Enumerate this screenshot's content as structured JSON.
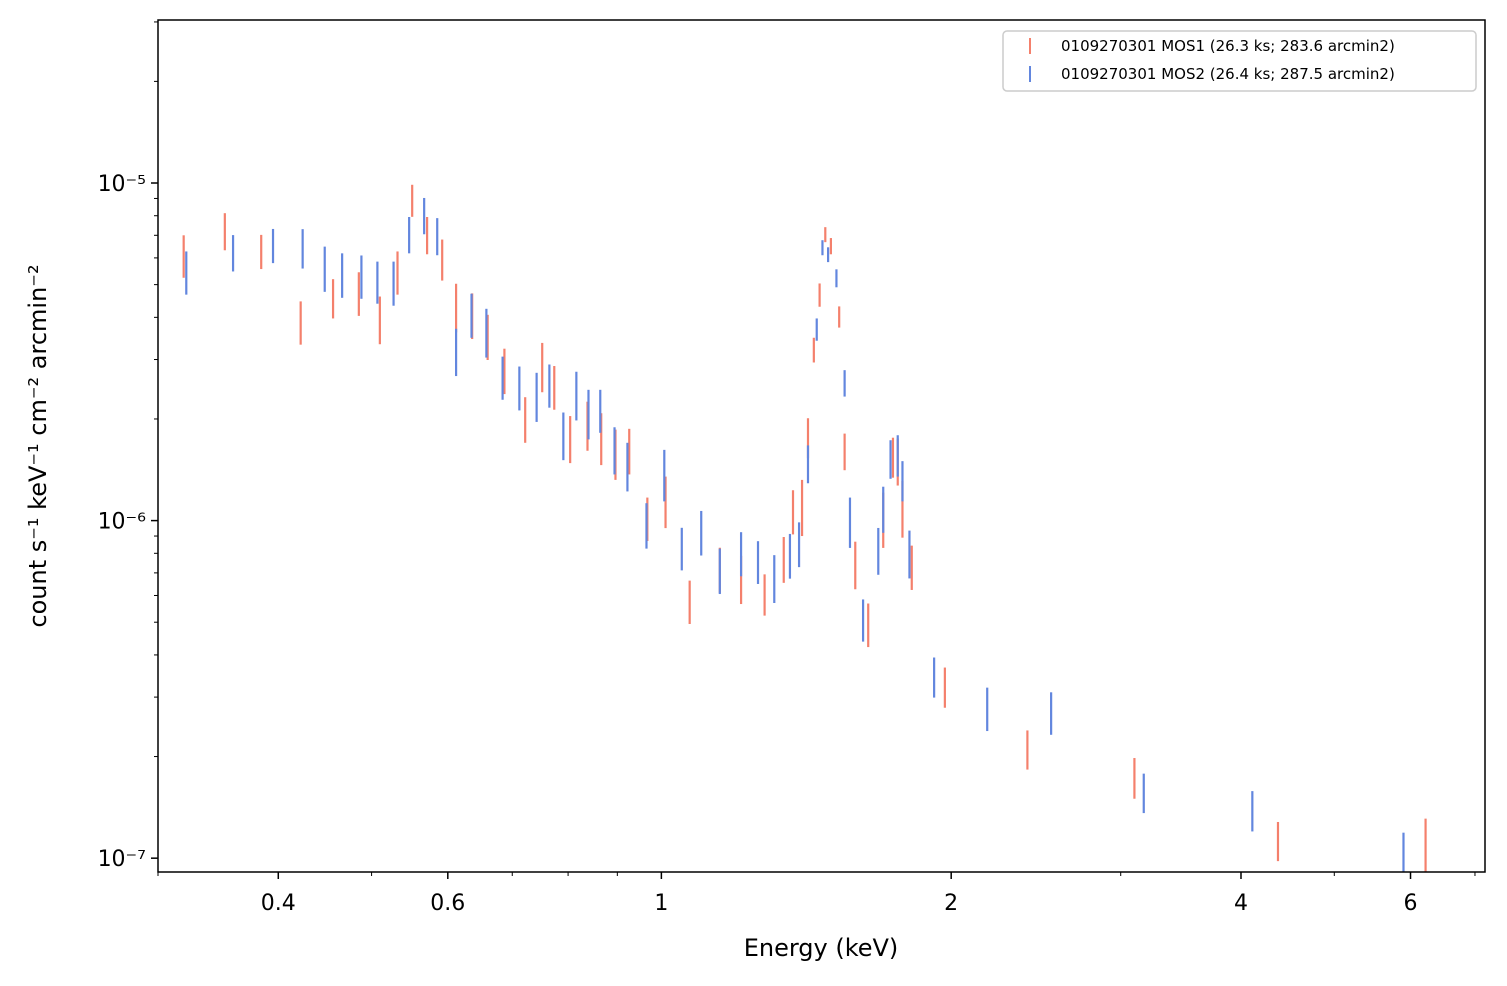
{
  "chart_data": {
    "type": "errorbar",
    "xlabel": "Energy (keV)",
    "ylabel": "count s⁻¹ keV⁻¹ cm⁻² arcmin⁻²",
    "xscale": "log",
    "yscale": "log",
    "xlim": [
      0.3,
      7.17
    ],
    "ylim": [
      9.1e-08,
      3.04e-05
    ],
    "xticks": [
      0.4,
      0.6,
      1,
      2,
      4,
      6
    ],
    "xminorticks": [
      0.3,
      0.5,
      0.7,
      0.8,
      0.9,
      3,
      5,
      7
    ],
    "yticks": [
      {
        "value": 1e-07,
        "label": "10⁻⁷"
      },
      {
        "value": 1e-06,
        "label": "10⁻⁶"
      },
      {
        "value": 1e-05,
        "label": "10⁻⁵"
      }
    ],
    "yminorticks": [
      2e-07,
      3e-07,
      4e-07,
      5e-07,
      6e-07,
      7e-07,
      8e-07,
      9e-07,
      2e-06,
      3e-06,
      4e-06,
      5e-06,
      6e-06,
      7e-06,
      8e-06,
      9e-06,
      2e-05,
      3e-05
    ],
    "legend": "upper right",
    "series": [
      {
        "name": "0109270301 MOS1 (26.3 ks; 283.6 arcmin2)",
        "color": "#f4806c",
        "x": [
          0.319,
          0.352,
          0.384,
          0.422,
          0.456,
          0.485,
          0.51,
          0.532,
          0.551,
          0.571,
          0.592,
          0.612,
          0.636,
          0.66,
          0.687,
          0.722,
          0.752,
          0.774,
          0.804,
          0.838,
          0.866,
          0.896,
          0.926,
          0.967,
          1.01,
          1.07,
          1.15,
          1.21,
          1.28,
          1.34,
          1.37,
          1.4,
          1.42,
          1.44,
          1.46,
          1.48,
          1.5,
          1.53,
          1.55,
          1.59,
          1.64,
          1.7,
          1.74,
          1.76,
          1.78,
          1.82,
          1.97,
          2.4,
          3.1,
          4.37,
          6.22
        ],
        "values": [
          6.12e-06,
          7.23e-06,
          6.29e-06,
          3.89e-06,
          4.58e-06,
          4.74e-06,
          3.97e-06,
          5.47e-06,
          8.91e-06,
          7.04e-06,
          5.97e-06,
          4.32e-06,
          4.08e-06,
          3.53e-06,
          2.8e-06,
          2.01e-06,
          2.88e-06,
          2.5e-06,
          1.76e-06,
          1.93e-06,
          1.77e-06,
          1.59e-06,
          1.62e-06,
          1.02e-06,
          1.15e-06,
          5.79e-07,
          7.21e-07,
          6.76e-07,
          6.08e-07,
          7.74e-07,
          1.07e-06,
          1.11e-06,
          1.77e-06,
          3.21e-06,
          4.67e-06,
          7.04e-06,
          6.51e-06,
          4.02e-06,
          1.61e-06,
          7.46e-07,
          4.95e-07,
          1.02e-06,
          1.55e-06,
          1.51e-06,
          1.1e-06,
          7.33e-07,
          3.23e-07,
          2.11e-07,
          1.74e-07,
          1.13e-07,
          1.07e-07
        ],
        "errors": [
          8.8e-07,
          9.1e-07,
          7.3e-07,
          5.7e-07,
          6.1e-07,
          7e-07,
          6.4e-07,
          8e-07,
          9.7e-07,
          8.9e-07,
          8.3e-07,
          7.1e-07,
          6.3e-07,
          5.4e-07,
          4.3e-07,
          3.1e-07,
          4.8e-07,
          3.7e-07,
          2.8e-07,
          3.2e-07,
          3.1e-07,
          2.7e-07,
          2.5e-07,
          1.5e-07,
          2e-07,
          8.5e-08,
          1.1e-07,
          1.1e-07,
          8.5e-08,
          1.2e-07,
          1.6e-07,
          2.1e-07,
          2.4e-07,
          2.7e-07,
          3.7e-07,
          3.6e-07,
          3.6e-07,
          2.9e-07,
          2e-07,
          1.2e-07,
          7.3e-08,
          1.9e-07,
          2.1e-07,
          2.4e-07,
          2.1e-07,
          1.1e-07,
          4.4e-08,
          2.8e-08,
          2.4e-08,
          1.5e-08,
          2.4e-08
        ]
      },
      {
        "name": "0109270301 MOS2 (26.4 ks; 287.5 arcmin2)",
        "color": "#6286de",
        "x": [
          0.321,
          0.359,
          0.395,
          0.424,
          0.447,
          0.466,
          0.488,
          0.507,
          0.527,
          0.547,
          0.567,
          0.585,
          0.612,
          0.635,
          0.658,
          0.684,
          0.712,
          0.742,
          0.765,
          0.791,
          0.816,
          0.84,
          0.864,
          0.894,
          0.922,
          0.965,
          1.007,
          1.05,
          1.1,
          1.15,
          1.21,
          1.26,
          1.31,
          1.36,
          1.39,
          1.42,
          1.45,
          1.47,
          1.49,
          1.52,
          1.55,
          1.57,
          1.62,
          1.68,
          1.7,
          1.73,
          1.76,
          1.78,
          1.81,
          1.92,
          2.18,
          2.54,
          3.17,
          4.11,
          5.9
        ],
        "values": [
          5.47e-06,
          6.24e-06,
          6.55e-06,
          6.44e-06,
          5.62e-06,
          5.38e-06,
          5.32e-06,
          5.12e-06,
          5.09e-06,
          7.06e-06,
          8.04e-06,
          6.99e-06,
          3.19e-06,
          4.09e-06,
          3.64e-06,
          2.67e-06,
          2.49e-06,
          2.35e-06,
          2.53e-06,
          1.8e-06,
          2.37e-06,
          2.09e-06,
          2.13e-06,
          1.63e-06,
          1.46e-06,
          9.76e-07,
          1.38e-06,
          8.32e-07,
          9.28e-07,
          7.16e-07,
          8.04e-07,
          7.59e-07,
          6.8e-07,
          7.93e-07,
          8.58e-07,
          1.48e-06,
          3.69e-06,
          6.44e-06,
          6.14e-06,
          5.23e-06,
          2.56e-06,
          1e-06,
          5.11e-07,
          8.21e-07,
          1.09e-06,
          1.53e-06,
          1.57e-06,
          1.32e-06,
          8.04e-07,
          3.46e-07,
          2.79e-07,
          2.71e-07,
          1.57e-07,
          1.39e-07,
          1.05e-07
        ],
        "errors": [
          8e-07,
          7.7e-07,
          7.6e-07,
          8.6e-07,
          8.6e-07,
          8.1e-07,
          7.8e-07,
          7.3e-07,
          7.6e-07,
          8.7e-07,
          9.9e-07,
          8.8e-07,
          5.1e-07,
          6.1e-07,
          6e-07,
          3.9e-07,
          3.7e-07,
          3.9e-07,
          3.7e-07,
          2.9e-07,
          3.9e-07,
          3.5e-07,
          3.1e-07,
          2.6e-07,
          2.4e-07,
          1.5e-07,
          2.4e-07,
          1.2e-07,
          1.4e-07,
          1.1e-07,
          1.2e-07,
          1.1e-07,
          1.1e-07,
          1.2e-07,
          1.3e-07,
          1.9e-07,
          2.8e-07,
          3.3e-07,
          3.1e-07,
          3.2e-07,
          2.3e-07,
          1.7e-07,
          7.3e-08,
          1.3e-07,
          1.7e-07,
          2e-07,
          2.2e-07,
          1.8e-07,
          1.3e-07,
          4.7e-08,
          4.1e-08,
          3.9e-08,
          2.1e-08,
          1.9e-08,
          1.4e-08
        ]
      }
    ]
  }
}
